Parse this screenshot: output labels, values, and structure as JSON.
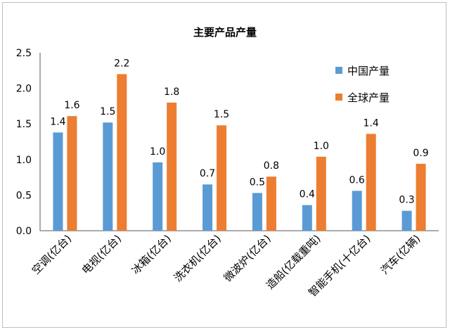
{
  "chart_data": {
    "type": "bar",
    "title": "主要产品产量",
    "categories": [
      "空调(亿台)",
      "电视(亿台)",
      "冰箱(亿台)",
      "洗衣机(亿台)",
      "微波炉(亿台)",
      "造船(亿载重吨)",
      "智能手机(十亿台)",
      "汽车(亿辆)"
    ],
    "series": [
      {
        "name": "中国产量",
        "color": "#5b9bd5",
        "values": [
          1.38,
          1.52,
          0.96,
          0.65,
          0.53,
          0.36,
          0.56,
          0.28
        ],
        "labels": [
          "1.4",
          "1.5",
          "1.0",
          "0.7",
          "0.5",
          "0.4",
          "0.6",
          "0.3"
        ]
      },
      {
        "name": "全球产量",
        "color": "#ed7d31",
        "values": [
          1.61,
          2.2,
          1.8,
          1.48,
          0.76,
          1.04,
          1.36,
          0.94
        ],
        "labels": [
          "1.6",
          "2.2",
          "1.8",
          "1.5",
          "0.8",
          "1.0",
          "1.4",
          "0.9"
        ]
      }
    ],
    "ylim": [
      0,
      2.5
    ],
    "yticks": [
      "0.0",
      "0.5",
      "1.0",
      "1.5",
      "2.0",
      "2.5"
    ],
    "grid": false,
    "legend": "right"
  }
}
